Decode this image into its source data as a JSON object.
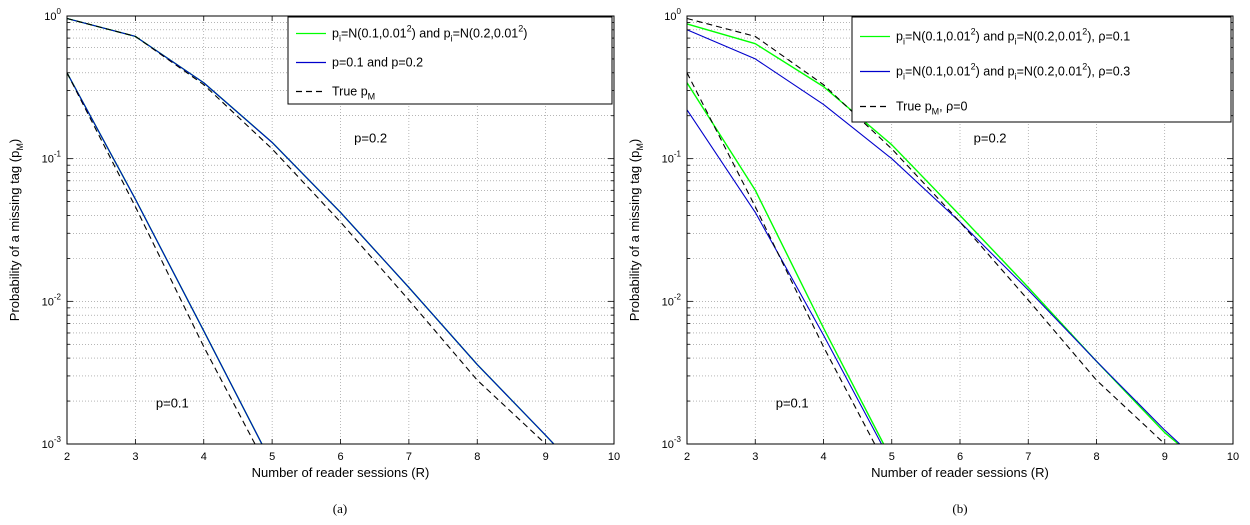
{
  "chart_data": [
    {
      "type": "line",
      "panel_caption": "(a)",
      "xlabel": "Number of reader sessions (R)",
      "ylabel": "Probability of a missing tag (p_M)",
      "xlim": [
        2,
        10
      ],
      "ylim": [
        0.001,
        1
      ],
      "yscale": "log",
      "grid": true,
      "x_ticks": [
        "2",
        "3",
        "4",
        "5",
        "6",
        "7",
        "8",
        "9",
        "10"
      ],
      "y_ticks": [
        {
          "base": "10",
          "exp": "0",
          "value": 1
        },
        {
          "base": "10",
          "exp": "-1",
          "value": 0.1
        },
        {
          "base": "10",
          "exp": "-2",
          "value": 0.01
        },
        {
          "base": "10",
          "exp": "-3",
          "value": 0.001
        }
      ],
      "legend_position": "top-right",
      "legend": [
        {
          "color": "#00ff00",
          "dash": "solid",
          "parts": [
            {
              "t": "p"
            },
            {
              "t": "i",
              "sub": true
            },
            {
              "t": "=N(0.1,0.01"
            },
            {
              "t": "2",
              "sup": true
            },
            {
              "t": ") and p"
            },
            {
              "t": "i",
              "sub": true
            },
            {
              "t": "=N(0.2,0.01"
            },
            {
              "t": "2",
              "sup": true
            },
            {
              "t": ")"
            }
          ]
        },
        {
          "color": "#0000cc",
          "dash": "solid",
          "parts": [
            {
              "t": "p=0.1 and p=0.2"
            }
          ]
        },
        {
          "color": "#000000",
          "dash": "dashed",
          "parts": [
            {
              "t": "True p"
            },
            {
              "t": "M",
              "sub": true
            }
          ]
        }
      ],
      "annotations": [
        {
          "text": "p=0.1",
          "x": 3.3,
          "y": 0.0018
        },
        {
          "text": "p=0.2",
          "x": 6.2,
          "y": 0.13
        }
      ],
      "series": [
        {
          "color": "#00ff00",
          "dash": "solid",
          "width": 1.4,
          "group": "p=0.1",
          "x": [
            2,
            3,
            4,
            4.85
          ],
          "y": [
            0.4,
            0.052,
            0.0062,
            0.001
          ]
        },
        {
          "color": "#00ff00",
          "dash": "solid",
          "width": 1.4,
          "group": "p=0.2",
          "x": [
            2,
            3,
            4,
            5,
            6,
            7,
            8,
            9,
            9.12
          ],
          "y": [
            0.96,
            0.72,
            0.34,
            0.13,
            0.042,
            0.0125,
            0.0036,
            0.00115,
            0.001
          ]
        },
        {
          "color": "#0000cc",
          "dash": "solid",
          "width": 1.1,
          "group": "p=0.1",
          "x": [
            2,
            3,
            4,
            4.85
          ],
          "y": [
            0.4,
            0.052,
            0.0062,
            0.001
          ]
        },
        {
          "color": "#0000cc",
          "dash": "solid",
          "width": 1.1,
          "group": "p=0.2",
          "x": [
            2,
            3,
            4,
            5,
            6,
            7,
            8,
            9,
            9.12
          ],
          "y": [
            0.96,
            0.72,
            0.34,
            0.13,
            0.042,
            0.0125,
            0.0036,
            0.00115,
            0.001
          ]
        },
        {
          "color": "#000000",
          "dash": "dashed",
          "width": 1.1,
          "group": "p=0.1",
          "x": [
            2,
            3,
            4,
            4.75
          ],
          "y": [
            0.4,
            0.046,
            0.0048,
            0.001
          ]
        },
        {
          "color": "#000000",
          "dash": "dashed",
          "width": 1.1,
          "group": "p=0.2",
          "x": [
            2,
            3,
            4,
            5,
            6,
            7,
            8,
            9,
            9.0
          ],
          "y": [
            0.96,
            0.72,
            0.33,
            0.117,
            0.036,
            0.0102,
            0.0028,
            0.001,
            0.001
          ]
        }
      ]
    },
    {
      "type": "line",
      "panel_caption": "(b)",
      "xlabel": "Number of reader sessions (R)",
      "ylabel": "Probability of a missing tag (p_M)",
      "xlim": [
        2,
        10
      ],
      "ylim": [
        0.001,
        1
      ],
      "yscale": "log",
      "grid": true,
      "x_ticks": [
        "2",
        "3",
        "4",
        "5",
        "6",
        "7",
        "8",
        "9",
        "10"
      ],
      "y_ticks": [
        {
          "base": "10",
          "exp": "0",
          "value": 1
        },
        {
          "base": "10",
          "exp": "-1",
          "value": 0.1
        },
        {
          "base": "10",
          "exp": "-2",
          "value": 0.01
        },
        {
          "base": "10",
          "exp": "-3",
          "value": 0.001
        }
      ],
      "legend_position": "top-right",
      "legend": [
        {
          "color": "#00ff00",
          "dash": "solid",
          "parts": [
            {
              "t": "p"
            },
            {
              "t": "i",
              "sub": true
            },
            {
              "t": "=N(0.1,0.01"
            },
            {
              "t": "2",
              "sup": true
            },
            {
              "t": ") and p"
            },
            {
              "t": "i",
              "sub": true
            },
            {
              "t": "=N(0.2,0.01"
            },
            {
              "t": "2",
              "sup": true
            },
            {
              "t": "), ρ=0.1"
            }
          ]
        },
        {
          "color": "#0000cc",
          "dash": "solid",
          "parts": [
            {
              "t": "p"
            },
            {
              "t": "i",
              "sub": true
            },
            {
              "t": "=N(0.1,0.01"
            },
            {
              "t": "2",
              "sup": true
            },
            {
              "t": ") and p"
            },
            {
              "t": "i",
              "sub": true
            },
            {
              "t": "=N(0.2,0.01"
            },
            {
              "t": "2",
              "sup": true
            },
            {
              "t": "), ρ=0.3"
            }
          ]
        },
        {
          "color": "#000000",
          "dash": "dashed",
          "parts": [
            {
              "t": "True p"
            },
            {
              "t": "M",
              "sub": true
            },
            {
              "t": ", ρ=0"
            }
          ]
        }
      ],
      "annotations": [
        {
          "text": "p=0.1",
          "x": 3.3,
          "y": 0.0018
        },
        {
          "text": "p=0.2",
          "x": 6.2,
          "y": 0.13
        }
      ],
      "series": [
        {
          "color": "#00ff00",
          "dash": "solid",
          "width": 1.4,
          "group": "p=0.1",
          "x": [
            2,
            3,
            4,
            4.88
          ],
          "y": [
            0.34,
            0.06,
            0.0065,
            0.001
          ]
        },
        {
          "color": "#00ff00",
          "dash": "solid",
          "width": 1.4,
          "group": "p=0.2",
          "x": [
            2,
            3,
            4,
            5,
            6,
            7,
            8,
            9,
            9.2
          ],
          "y": [
            0.88,
            0.64,
            0.32,
            0.125,
            0.04,
            0.0125,
            0.0038,
            0.0012,
            0.001
          ]
        },
        {
          "color": "#0000cc",
          "dash": "solid",
          "width": 1.1,
          "group": "p=0.1",
          "x": [
            2,
            3,
            4,
            4.85
          ],
          "y": [
            0.22,
            0.042,
            0.0058,
            0.001
          ]
        },
        {
          "color": "#0000cc",
          "dash": "solid",
          "width": 1.1,
          "group": "p=0.2",
          "x": [
            2,
            3,
            4,
            5,
            6,
            7,
            8,
            9,
            9.22
          ],
          "y": [
            0.8,
            0.5,
            0.24,
            0.1,
            0.036,
            0.012,
            0.0038,
            0.00125,
            0.001
          ]
        },
        {
          "color": "#000000",
          "dash": "dashed",
          "width": 1.1,
          "group": "p=0.1",
          "x": [
            2,
            3,
            4,
            4.75
          ],
          "y": [
            0.4,
            0.046,
            0.0048,
            0.001
          ]
        },
        {
          "color": "#000000",
          "dash": "dashed",
          "width": 1.1,
          "group": "p=0.2",
          "x": [
            2,
            3,
            4,
            5,
            6,
            7,
            8,
            9,
            9.0
          ],
          "y": [
            0.96,
            0.72,
            0.33,
            0.117,
            0.036,
            0.0102,
            0.0028,
            0.001,
            0.001
          ]
        }
      ]
    }
  ]
}
